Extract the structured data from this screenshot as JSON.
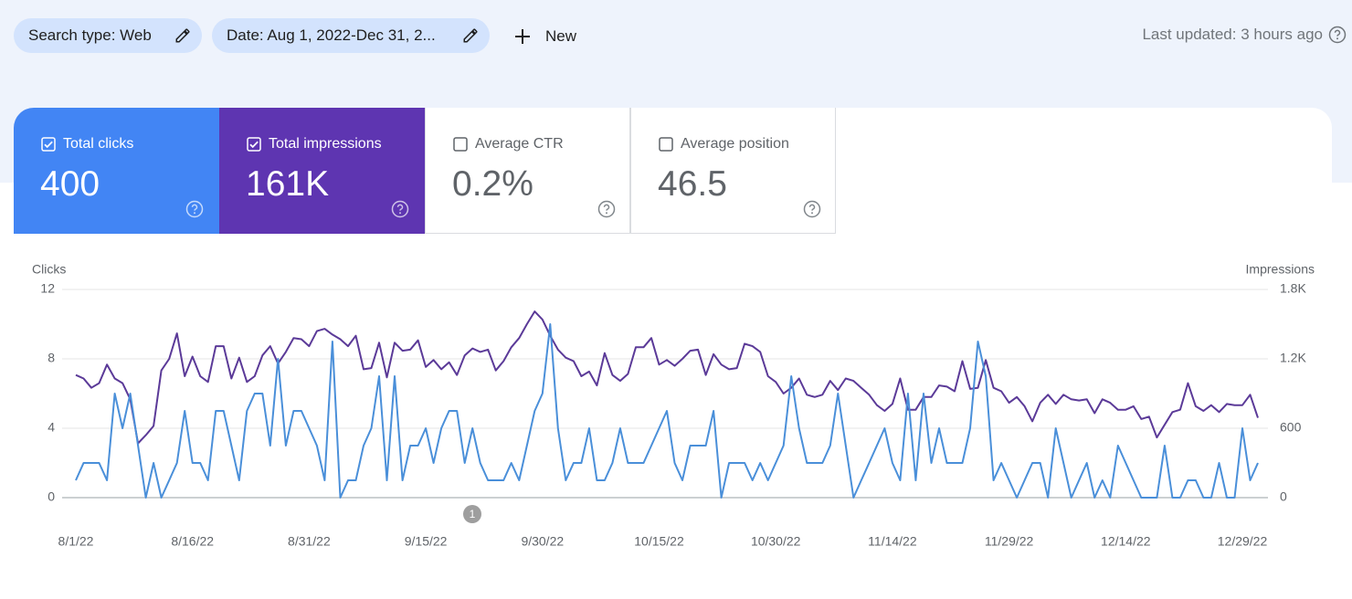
{
  "filters": {
    "search_type": "Search type: Web",
    "date": "Date: Aug 1, 2022-Dec 31, 2...",
    "new": "New"
  },
  "last_updated": "Last updated: 3 hours ago",
  "metrics": [
    {
      "label": "Total clicks",
      "value": "400",
      "checked": true,
      "color": "#4285f4"
    },
    {
      "label": "Total impressions",
      "value": "161K",
      "checked": true,
      "color": "#5e35b1"
    },
    {
      "label": "Average CTR",
      "value": "0.2%",
      "checked": false
    },
    {
      "label": "Average position",
      "value": "46.5",
      "checked": false
    }
  ],
  "chart_data": {
    "type": "line",
    "annotation": "1",
    "categories": [
      "8/1/22",
      null,
      null,
      null,
      null,
      null,
      null,
      null,
      null,
      null,
      null,
      null,
      null,
      null,
      null,
      "8/16/22",
      null,
      null,
      null,
      null,
      null,
      null,
      null,
      null,
      null,
      null,
      null,
      null,
      null,
      null,
      "8/31/22",
      null,
      null,
      null,
      null,
      null,
      null,
      null,
      null,
      null,
      null,
      null,
      null,
      null,
      null,
      "9/15/22",
      null,
      null,
      null,
      null,
      null,
      null,
      null,
      null,
      null,
      null,
      null,
      null,
      null,
      null,
      "9/30/22",
      null,
      null,
      null,
      null,
      null,
      null,
      null,
      null,
      null,
      null,
      null,
      null,
      null,
      null,
      "10/15/22",
      null,
      null,
      null,
      null,
      null,
      null,
      null,
      null,
      null,
      null,
      null,
      null,
      null,
      null,
      "10/30/22",
      null,
      null,
      null,
      null,
      null,
      null,
      null,
      null,
      null,
      null,
      null,
      null,
      null,
      null,
      "11/14/22",
      null,
      null,
      null,
      null,
      null,
      null,
      null,
      null,
      null,
      null,
      null,
      null,
      null,
      null,
      "11/29/22",
      null,
      null,
      null,
      null,
      null,
      null,
      null,
      null,
      null,
      null,
      null,
      null,
      null,
      null,
      "12/14/22",
      null,
      null,
      null,
      null,
      null,
      null,
      null,
      null,
      null,
      null,
      null,
      null,
      null,
      null,
      "12/29/22",
      null,
      null
    ],
    "series": [
      {
        "name": "Clicks",
        "color": "#4a8fd9",
        "values": [
          1,
          2,
          2,
          2,
          1,
          6,
          4,
          6,
          3,
          0,
          2,
          0,
          1,
          2,
          5,
          2,
          2,
          1,
          5,
          5,
          3,
          1,
          5,
          6,
          6,
          3,
          8,
          3,
          5,
          5,
          4,
          3,
          1,
          9,
          0,
          1,
          1,
          3,
          4,
          7,
          1,
          7,
          1,
          3,
          3,
          4,
          2,
          4,
          5,
          5,
          2,
          4,
          2,
          1,
          1,
          1,
          2,
          1,
          3,
          5,
          6,
          10,
          4,
          1,
          2,
          2,
          4,
          1,
          1,
          2,
          4,
          2,
          2,
          2,
          3,
          4,
          5,
          2,
          1,
          3,
          3,
          3,
          5,
          0,
          2,
          2,
          2,
          1,
          2,
          1,
          2,
          3,
          7,
          4,
          2,
          2,
          2,
          3,
          6,
          3,
          0,
          1,
          2,
          3,
          4,
          2,
          1,
          6,
          1,
          6,
          2,
          4,
          2,
          2,
          2,
          4,
          9,
          7,
          1,
          2,
          1,
          0,
          1,
          2,
          2,
          0,
          4,
          2,
          0,
          1,
          2,
          0,
          1,
          0,
          3,
          2,
          1,
          0,
          0,
          0,
          3,
          0,
          0,
          1,
          1,
          0,
          0,
          2,
          0,
          0,
          4,
          1,
          2
        ]
      },
      {
        "name": "Impressions",
        "color": "#5b3a98",
        "axis": "y2",
        "values": [
          1060,
          1030,
          950,
          990,
          1150,
          1030,
          990,
          850,
          470,
          540,
          620,
          1100,
          1200,
          1420,
          1050,
          1220,
          1050,
          1000,
          1310,
          1310,
          1030,
          1210,
          1000,
          1050,
          1230,
          1310,
          1160,
          1260,
          1380,
          1370,
          1310,
          1440,
          1460,
          1410,
          1370,
          1310,
          1400,
          1110,
          1120,
          1340,
          1040,
          1340,
          1270,
          1280,
          1360,
          1130,
          1190,
          1110,
          1170,
          1060,
          1230,
          1290,
          1260,
          1280,
          1100,
          1180,
          1300,
          1380,
          1500,
          1610,
          1540,
          1400,
          1280,
          1210,
          1180,
          1050,
          1090,
          970,
          1250,
          1060,
          1010,
          1070,
          1300,
          1300,
          1380,
          1150,
          1190,
          1140,
          1200,
          1270,
          1280,
          1060,
          1240,
          1150,
          1110,
          1120,
          1330,
          1310,
          1260,
          1050,
          1000,
          900,
          950,
          1030,
          890,
          870,
          890,
          1010,
          930,
          1030,
          1010,
          950,
          890,
          800,
          750,
          810,
          1030,
          760,
          760,
          870,
          870,
          970,
          960,
          920,
          1180,
          940,
          950,
          1190,
          950,
          920,
          820,
          870,
          790,
          660,
          820,
          890,
          810,
          890,
          850,
          840,
          850,
          730,
          850,
          820,
          760,
          760,
          790,
          680,
          700,
          520,
          630,
          740,
          760,
          990,
          790,
          750,
          800,
          740,
          810,
          800,
          800,
          890,
          690
        ]
      }
    ],
    "ylim": [
      0,
      12
    ],
    "yticks": [
      0,
      4,
      8,
      12
    ],
    "y2lim": [
      0,
      1800
    ],
    "y2ticks": [
      0,
      600,
      {
        "value": 1200,
        "label": "1.2K"
      },
      {
        "value": 1800,
        "label": "1.8K"
      }
    ],
    "grid": true
  }
}
